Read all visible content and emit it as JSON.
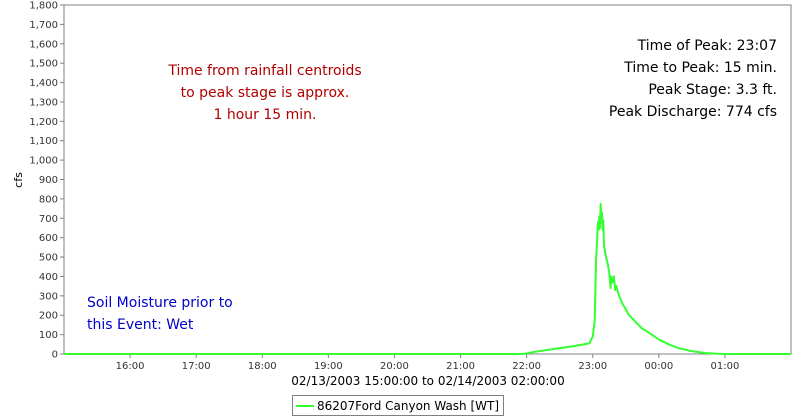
{
  "chart_data": {
    "type": "line",
    "ylabel": "cfs",
    "x_range_label": "02/13/2003 15:00:00 to 02/14/2003 02:00:00",
    "x_tick_labels": [
      "16:00",
      "17:00",
      "18:00",
      "19:00",
      "20:00",
      "21:00",
      "22:00",
      "23:00",
      "00:00",
      "01:00"
    ],
    "x_ticks_hours": [
      16,
      17,
      18,
      19,
      20,
      21,
      22,
      23,
      24,
      25
    ],
    "xlim_hours": [
      15,
      26
    ],
    "ylim": [
      0,
      1800
    ],
    "y_ticks": [
      0,
      100,
      200,
      300,
      400,
      500,
      600,
      700,
      800,
      900,
      1000,
      1100,
      1200,
      1300,
      1400,
      1500,
      1600,
      1700,
      1800
    ],
    "y_tick_labels": [
      "0",
      "100",
      "200",
      "300",
      "400",
      "500",
      "600",
      "700",
      "800",
      "900",
      "1,000",
      "1,100",
      "1,200",
      "1,300",
      "1,400",
      "1,500",
      "1,600",
      "1,700",
      "1,800"
    ],
    "grid": false,
    "legend_position": "bottom-center",
    "series": [
      {
        "name": "86207Ford Canyon Wash [WT]",
        "color": "#33ff33",
        "points": [
          [
            15.0,
            0
          ],
          [
            21.95,
            0
          ],
          [
            22.1,
            10
          ],
          [
            22.4,
            25
          ],
          [
            22.7,
            40
          ],
          [
            22.95,
            55
          ],
          [
            23.0,
            90
          ],
          [
            23.03,
            170
          ],
          [
            23.05,
            480
          ],
          [
            23.07,
            620
          ],
          [
            23.08,
            680
          ],
          [
            23.09,
            640
          ],
          [
            23.1,
            710
          ],
          [
            23.11,
            650
          ],
          [
            23.12,
            774
          ],
          [
            23.13,
            700
          ],
          [
            23.14,
            730
          ],
          [
            23.15,
            640
          ],
          [
            23.16,
            690
          ],
          [
            23.17,
            560
          ],
          [
            23.2,
            500
          ],
          [
            23.23,
            460
          ],
          [
            23.25,
            420
          ],
          [
            23.27,
            340
          ],
          [
            23.28,
            400
          ],
          [
            23.3,
            370
          ],
          [
            23.32,
            400
          ],
          [
            23.34,
            330
          ],
          [
            23.36,
            350
          ],
          [
            23.38,
            320
          ],
          [
            23.4,
            300
          ],
          [
            23.45,
            260
          ],
          [
            23.55,
            200
          ],
          [
            23.65,
            165
          ],
          [
            23.75,
            130
          ],
          [
            23.85,
            110
          ],
          [
            24.0,
            75
          ],
          [
            24.15,
            50
          ],
          [
            24.3,
            30
          ],
          [
            24.5,
            15
          ],
          [
            24.7,
            5
          ],
          [
            24.9,
            1
          ],
          [
            25.05,
            0
          ],
          [
            26.0,
            0
          ]
        ]
      }
    ]
  },
  "annotations": {
    "rainfall_lines": [
      "Time from rainfall centroids",
      "to peak stage is approx.",
      "1 hour 15 min."
    ],
    "peak_stats": [
      "Time of Peak: 23:07",
      "Time to Peak: 15 min.",
      "Peak Stage: 3.3 ft.",
      "Peak Discharge: 774 cfs"
    ],
    "soil_lines": [
      "Soil Moisture prior to",
      "this Event: Wet"
    ]
  },
  "colors": {
    "rainfall_text": "#b00000",
    "soil_text": "#0000cc",
    "axis": "#808080"
  }
}
